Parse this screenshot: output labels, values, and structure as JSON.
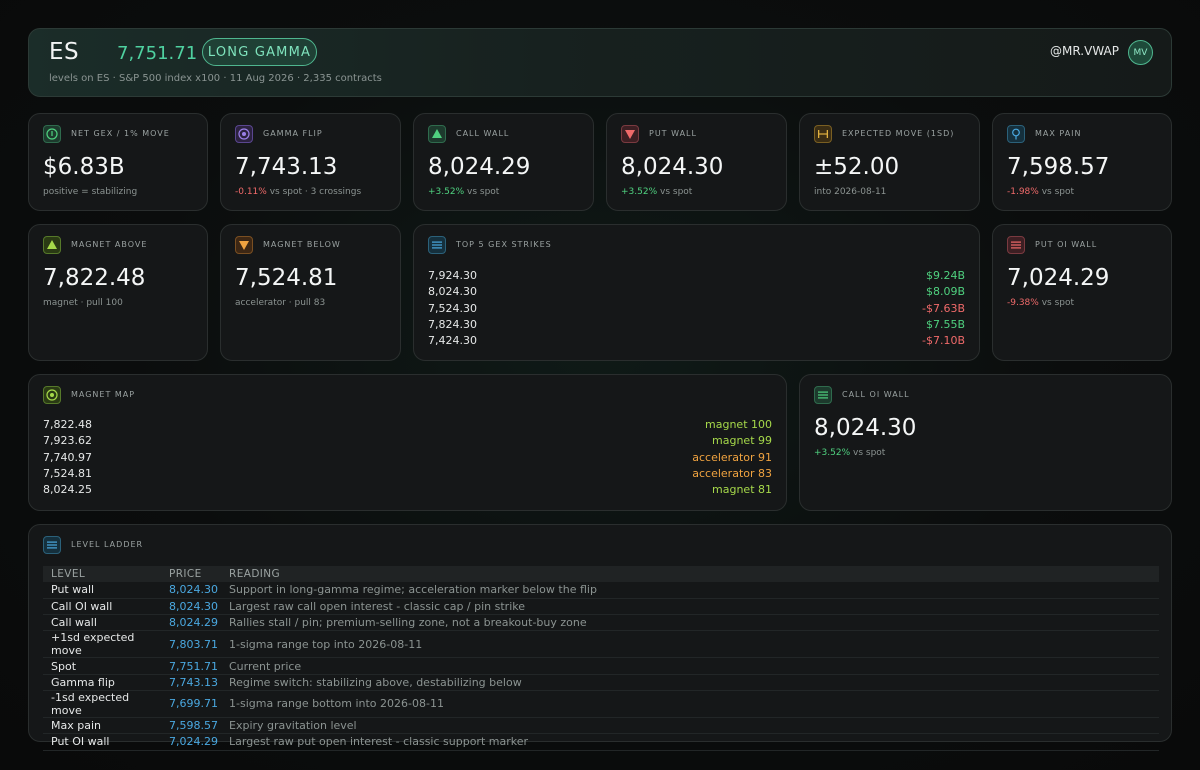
{
  "header": {
    "symbol": "ES",
    "price": "7,751.71",
    "badge": "LONG GAMMA",
    "subtitle": "levels on ES · S&P 500 index x100 · 11 Aug 2026 · 2,335 contracts",
    "user": "@MR.VWAP",
    "avatar": "MV"
  },
  "stats": {
    "net_gex": {
      "label": "NET GEX / 1% MOVE",
      "value": "$6.83B",
      "sub": "positive = stabilizing",
      "icon": "info-icon",
      "color": "#4fd17f"
    },
    "gamma_flip": {
      "label": "GAMMA FLIP",
      "value": "7,743.13",
      "sub_change": "-0.11%",
      "sub_rest": " vs spot · 3 crossings",
      "icon": "target-icon",
      "color": "#9b7fe8"
    },
    "call_wall": {
      "label": "CALL WALL",
      "value": "8,024.29",
      "sub_change": "+3.52%",
      "sub_rest": " vs spot",
      "icon": "triangle-up-icon",
      "color": "#4fd17f"
    },
    "put_wall": {
      "label": "PUT WALL",
      "value": "8,024.30",
      "sub_change": "+3.52%",
      "sub_rest": " vs spot",
      "icon": "triangle-down-icon",
      "color": "#f06a6a"
    },
    "expected_move": {
      "label": "EXPECTED MOVE (1sd)",
      "value": "±52.00",
      "sub": "into 2026-08-11",
      "icon": "range-icon",
      "color": "#e0b040"
    },
    "max_pain": {
      "label": "MAX PAIN",
      "value": "7,598.57",
      "sub_change": "-1.98%",
      "sub_rest": " vs spot",
      "icon": "pin-icon",
      "color": "#4aa8e0"
    },
    "magnet_above": {
      "label": "MAGNET ABOVE",
      "value": "7,822.48",
      "sub": "magnet · pull 100",
      "icon": "triangle-up-icon",
      "color": "#a6d94a"
    },
    "magnet_below": {
      "label": "MAGNET BELOW",
      "value": "7,524.81",
      "sub": "accelerator · pull 83",
      "icon": "triangle-down-icon",
      "color": "#f0a340"
    },
    "put_oi_wall": {
      "label": "PUT OI WALL",
      "value": "7,024.29",
      "sub_change": "-9.38%",
      "sub_rest": " vs spot",
      "icon": "list-icon",
      "color": "#f06a6a"
    },
    "call_oi_wall": {
      "label": "CALL OI WALL",
      "value": "8,024.30",
      "sub_change": "+3.52%",
      "sub_rest": " vs spot",
      "icon": "list-icon",
      "color": "#4fd17f"
    }
  },
  "top_strikes": {
    "label": "TOP 5 GEX STRIKES",
    "rows": [
      {
        "strike": "7,924.30",
        "gex": "$9.24B",
        "sign": "pos"
      },
      {
        "strike": "8,024.30",
        "gex": "$8.09B",
        "sign": "pos"
      },
      {
        "strike": "7,524.30",
        "gex": "-$7.63B",
        "sign": "neg"
      },
      {
        "strike": "7,824.30",
        "gex": "$7.55B",
        "sign": "pos"
      },
      {
        "strike": "7,424.30",
        "gex": "-$7.10B",
        "sign": "neg"
      }
    ]
  },
  "magnet_map": {
    "label": "MAGNET MAP",
    "rows": [
      {
        "level": "7,822.48",
        "tag": "magnet 100",
        "kind": "magnet"
      },
      {
        "level": "7,923.62",
        "tag": "magnet 99",
        "kind": "magnet"
      },
      {
        "level": "7,740.97",
        "tag": "accelerator 91",
        "kind": "accelerator"
      },
      {
        "level": "7,524.81",
        "tag": "accelerator 83",
        "kind": "accelerator"
      },
      {
        "level": "8,024.25",
        "tag": "magnet 81",
        "kind": "magnet"
      }
    ]
  },
  "ladder": {
    "label": "LEVEL LADDER",
    "columns": [
      "LEVEL",
      "PRICE",
      "READING"
    ],
    "rows": [
      {
        "level": "Put wall",
        "price": "8,024.30",
        "reading": "Support in long-gamma regime; acceleration marker below the flip"
      },
      {
        "level": "Call OI wall",
        "price": "8,024.30",
        "reading": "Largest raw call open interest - classic cap / pin strike"
      },
      {
        "level": "Call wall",
        "price": "8,024.29",
        "reading": "Rallies stall / pin; premium-selling zone, not a breakout-buy zone"
      },
      {
        "level": "+1sd expected move",
        "price": "7,803.71",
        "reading": "1-sigma range top into 2026-08-11"
      },
      {
        "level": "Spot",
        "price": "7,751.71",
        "reading": "Current price"
      },
      {
        "level": "Gamma flip",
        "price": "7,743.13",
        "reading": "Regime switch: stabilizing above, destabilizing below"
      },
      {
        "level": "-1sd expected move",
        "price": "7,699.71",
        "reading": "1-sigma range bottom into 2026-08-11"
      },
      {
        "level": "Max pain",
        "price": "7,598.57",
        "reading": "Expiry gravitation level"
      },
      {
        "level": "Put OI wall",
        "price": "7,024.29",
        "reading": "Largest raw put open interest - classic support marker"
      }
    ]
  }
}
